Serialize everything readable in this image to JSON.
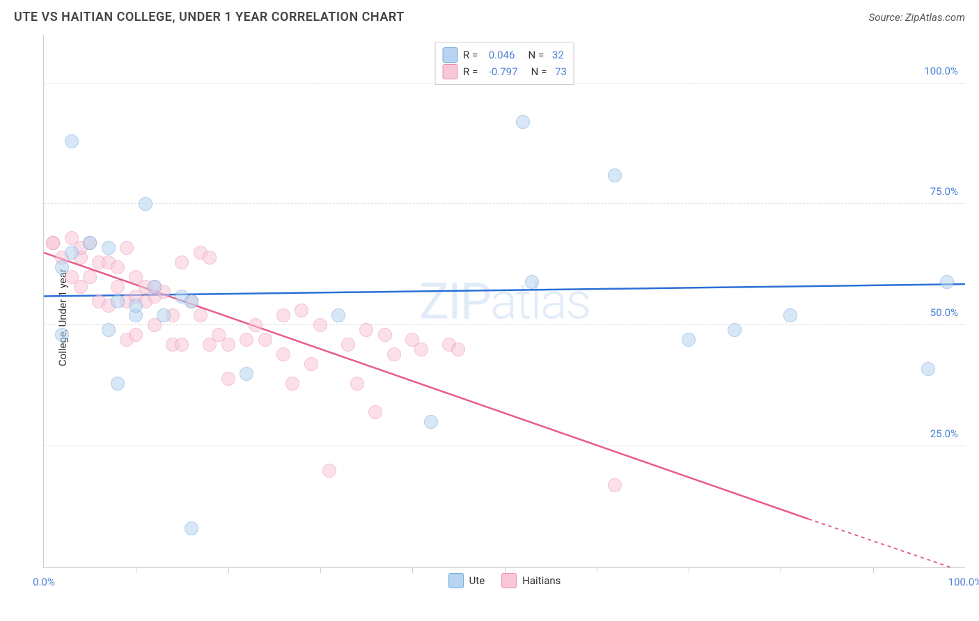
{
  "title": "UTE VS HAITIAN COLLEGE, UNDER 1 YEAR CORRELATION CHART",
  "source": "Source: ZipAtlas.com",
  "ylabel": "College, Under 1 year",
  "watermark": "ZIPatlas",
  "chart": {
    "xlim": [
      0,
      100
    ],
    "ylim": [
      0,
      110
    ],
    "yticks": [
      {
        "v": 25,
        "label": "25.0%"
      },
      {
        "v": 50,
        "label": "50.0%"
      },
      {
        "v": 75,
        "label": "75.0%"
      },
      {
        "v": 100,
        "label": "100.0%"
      }
    ],
    "xticks_major": [
      0,
      100
    ],
    "xtick_labels": {
      "0": "0.0%",
      "100": "100.0%"
    },
    "xticks_minor": [
      10,
      20,
      30,
      40,
      50,
      60,
      70,
      80,
      90
    ],
    "point_radius": 10,
    "series": {
      "ute": {
        "label": "Ute",
        "fill": "#b8d4f0",
        "stroke": "#6fa8e0",
        "line_color": "#2a6fd6",
        "r_value": "0.046",
        "n_value": "32",
        "regression": {
          "x1": 0,
          "y1": 56,
          "x2": 100,
          "y2": 58.5
        },
        "points": [
          [
            2,
            48
          ],
          [
            2,
            62
          ],
          [
            3,
            65
          ],
          [
            3,
            88
          ],
          [
            5,
            67
          ],
          [
            7,
            49
          ],
          [
            7,
            66
          ],
          [
            8,
            38
          ],
          [
            8,
            55
          ],
          [
            10,
            52
          ],
          [
            10,
            54
          ],
          [
            11,
            75
          ],
          [
            12,
            58
          ],
          [
            13,
            52
          ],
          [
            15,
            56
          ],
          [
            16,
            55
          ],
          [
            16,
            8
          ],
          [
            22,
            40
          ],
          [
            32,
            52
          ],
          [
            42,
            30
          ],
          [
            52,
            92
          ],
          [
            53,
            59
          ],
          [
            62,
            81
          ],
          [
            70,
            47
          ],
          [
            75,
            49
          ],
          [
            81,
            52
          ],
          [
            96,
            41
          ],
          [
            98,
            59
          ]
        ]
      },
      "haitian": {
        "label": "Haitians",
        "fill": "#f8c8d8",
        "stroke": "#ec8fb0",
        "line_color": "#e85b8c",
        "r_value": "-0.797",
        "n_value": "73",
        "regression": {
          "x1": 0,
          "y1": 65,
          "x2": 83,
          "y2": 10,
          "dash_to_x": 100,
          "dash_to_y": -1
        },
        "points": [
          [
            1,
            67
          ],
          [
            1,
            67
          ],
          [
            2,
            64
          ],
          [
            3,
            68
          ],
          [
            3,
            60
          ],
          [
            4,
            58
          ],
          [
            4,
            64
          ],
          [
            4,
            66
          ],
          [
            5,
            67
          ],
          [
            5,
            60
          ],
          [
            6,
            55
          ],
          [
            6,
            63
          ],
          [
            7,
            54
          ],
          [
            7,
            63
          ],
          [
            8,
            58
          ],
          [
            8,
            62
          ],
          [
            9,
            47
          ],
          [
            9,
            55
          ],
          [
            9,
            66
          ],
          [
            10,
            48
          ],
          [
            10,
            56
          ],
          [
            10,
            60
          ],
          [
            11,
            55
          ],
          [
            11,
            58
          ],
          [
            12,
            50
          ],
          [
            12,
            56
          ],
          [
            12,
            58
          ],
          [
            13,
            57
          ],
          [
            14,
            46
          ],
          [
            14,
            52
          ],
          [
            15,
            46
          ],
          [
            15,
            63
          ],
          [
            16,
            55
          ],
          [
            17,
            52
          ],
          [
            17,
            65
          ],
          [
            18,
            46
          ],
          [
            18,
            64
          ],
          [
            19,
            48
          ],
          [
            20,
            39
          ],
          [
            20,
            46
          ],
          [
            22,
            47
          ],
          [
            23,
            50
          ],
          [
            24,
            47
          ],
          [
            26,
            44
          ],
          [
            26,
            52
          ],
          [
            27,
            38
          ],
          [
            28,
            53
          ],
          [
            29,
            42
          ],
          [
            30,
            50
          ],
          [
            31,
            20
          ],
          [
            33,
            46
          ],
          [
            34,
            38
          ],
          [
            35,
            49
          ],
          [
            36,
            32
          ],
          [
            37,
            48
          ],
          [
            38,
            44
          ],
          [
            40,
            47
          ],
          [
            41,
            45
          ],
          [
            44,
            46
          ],
          [
            45,
            45
          ],
          [
            62,
            17
          ]
        ]
      }
    }
  }
}
